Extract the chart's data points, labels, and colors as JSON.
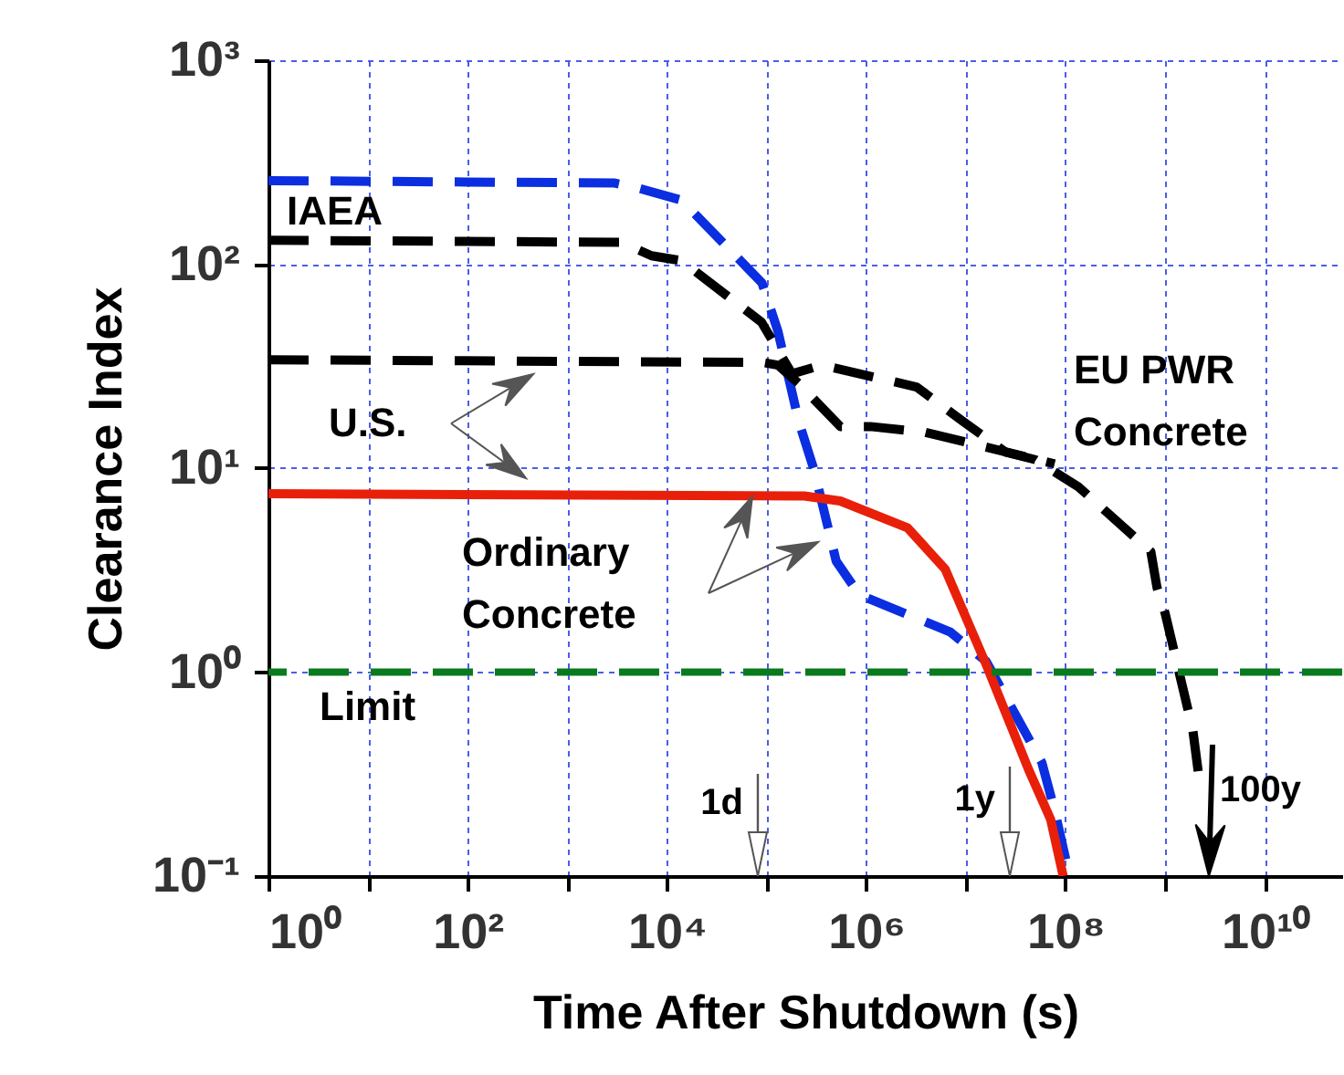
{
  "chart_data": {
    "type": "line",
    "xlabel": "Time After Shutdown (s)",
    "ylabel": "Clearance Index",
    "log": "xy",
    "grid": true,
    "xlim": [
      1,
      60000000000
    ],
    "ylim": [
      0.1,
      1000
    ],
    "xticks": [
      {
        "value": 1,
        "label": "10⁰"
      },
      {
        "value": 10,
        "label": null
      },
      {
        "value": 100,
        "label": "10²"
      },
      {
        "value": 1000,
        "label": null
      },
      {
        "value": 10000,
        "label": "10⁴"
      },
      {
        "value": 100000,
        "label": null
      },
      {
        "value": 1000000,
        "label": "10⁶"
      },
      {
        "value": 10000000,
        "label": null
      },
      {
        "value": 100000000,
        "label": "10⁸"
      },
      {
        "value": 1000000000,
        "label": null
      },
      {
        "value": 10000000000,
        "label": "10¹⁰"
      }
    ],
    "yticks": [
      {
        "value": 0.1,
        "label": "10⁻¹"
      },
      {
        "value": 1,
        "label": "10⁰"
      },
      {
        "value": 10,
        "label": "10¹"
      },
      {
        "value": 100,
        "label": "10²"
      },
      {
        "value": 1000,
        "label": "10³"
      }
    ],
    "series": [
      {
        "color": "#0a2ee0",
        "line_style": "dashed",
        "x": [
          1,
          3000,
          5000,
          14000,
          90000,
          130000,
          210000,
          300000,
          500000,
          850000,
          7000000,
          16000000,
          58000000,
          78000000,
          110000000
        ],
        "values": [
          257,
          250,
          237,
          206,
          81,
          47,
          17,
          9.8,
          3.5,
          2.4,
          1.57,
          1.13,
          0.36,
          0.21,
          0.1
        ]
      },
      {
        "color": "#000000",
        "line_style": "dashed",
        "x": [
          1,
          90000,
          130000,
          210000,
          550000,
          1100000,
          3900000,
          78000000
        ],
        "values": [
          34,
          33,
          32,
          26,
          16,
          16,
          15,
          10.5
        ]
      },
      {
        "color": "#e8200a",
        "line_style": "solid",
        "x": [
          1,
          240000,
          550000,
          2600000,
          6200000,
          16000000,
          43000000,
          71000000,
          95000000
        ],
        "values": [
          7.5,
          7.3,
          6.9,
          5.1,
          3.2,
          1.09,
          0.33,
          0.19,
          0.1
        ]
      },
      {
        "color": "#000000",
        "line_style": "dashed",
        "x": [
          1,
          3500,
          7000,
          14000,
          89000,
          180000,
          360000,
          3200000,
          9300000,
          25000000,
          50000000,
          135000000,
          720000000,
          830000000,
          1000000000,
          1900000000,
          2200000000
        ],
        "values": [
          131,
          128,
          110,
          104,
          52,
          29,
          32,
          25,
          17,
          12,
          11,
          8.1,
          3.9,
          2.6,
          1.95,
          0.52,
          0.3
        ]
      }
    ],
    "ref_lines": [
      {
        "axis": "y",
        "value": 1,
        "label": "Limit",
        "color": "#0a7a1e",
        "line_style": "dashed"
      }
    ],
    "annotations": [
      "IAEA",
      "U.S.",
      "Ordinary Concrete",
      "EU PWR Concrete",
      "1d",
      "1y",
      "100y"
    ]
  }
}
